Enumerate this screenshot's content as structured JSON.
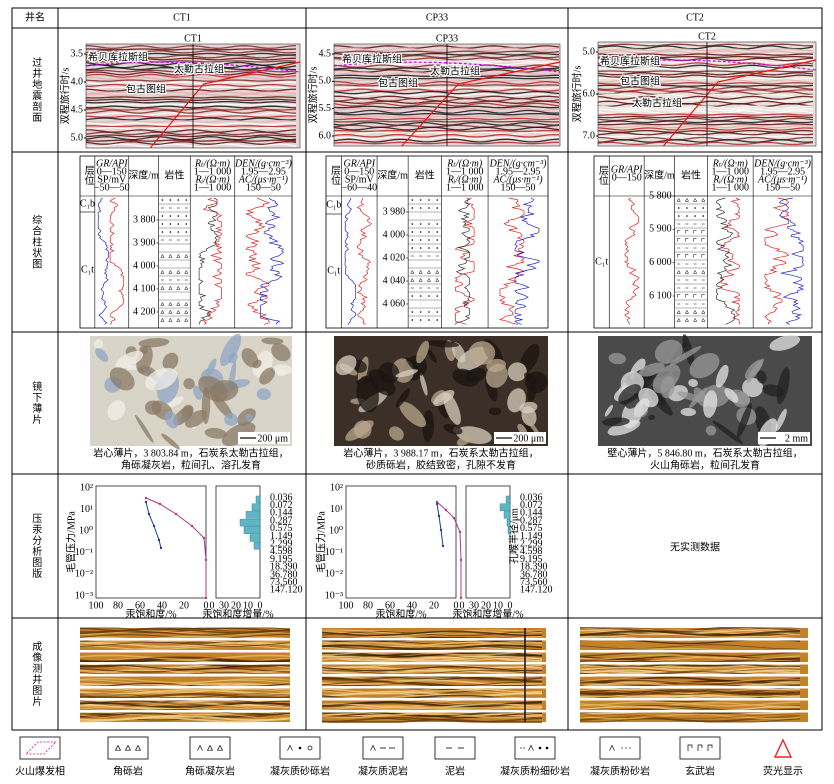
{
  "header": {
    "label": "井名",
    "wells": [
      "CT1",
      "CP33",
      "CT2"
    ]
  },
  "row_labels": [
    "过井地震剖面",
    "综合柱状图",
    "镜下薄片",
    "压汞分析图版",
    "成像测井图片"
  ],
  "seismic": [
    {
      "well": "CT1",
      "axis": "双程旅行时/s",
      "ticks": [
        "3.5",
        "4.0",
        "4.5",
        "5.0"
      ],
      "formations": [
        "希贝库拉斯组",
        "包古图组",
        "太勒古拉组"
      ]
    },
    {
      "well": "CP33",
      "axis": "双程旅行时/s",
      "ticks": [
        "4.5",
        "5.0",
        "5.5",
        "6.0"
      ],
      "formations": [
        "希贝库拉斯组",
        "包古图组",
        "太勒古拉组"
      ]
    },
    {
      "well": "CT2",
      "axis": "双程旅行时/s",
      "ticks": [
        "5.0",
        "6.0",
        "7.0"
      ],
      "formations": [
        "希贝库拉斯组",
        "包古图组",
        "太勒古拉组"
      ]
    }
  ],
  "columns": [
    {
      "strata_label": "层位",
      "gr": "GR/API",
      "gr_range": "0—150",
      "sp": "SP/mV",
      "sp_range": "−50—50",
      "depth": "深度/m",
      "lith": "岩性",
      "rt": "Rₜ/(Ω·m)",
      "rt_range": "1—1 000",
      "ri": "Rᵢ/(Ω·m)",
      "ri_range": "1—1 000",
      "den": "DEN/(g·cm⁻³)",
      "den_range": "1.95—2.95",
      "ac": "AC/(μs·m⁻¹)",
      "ac_range": "150—50",
      "strata": [
        "C₁b",
        "C₁t"
      ],
      "depths": [
        "3 800",
        "3 900",
        "4 000",
        "4 100",
        "4 200"
      ]
    },
    {
      "strata_label": "层位",
      "gr": "GR/API",
      "gr_range": "0—150",
      "sp": "SP/mV",
      "sp_range": "−60—40",
      "depth": "深度/m",
      "lith": "岩性",
      "rt": "Rₜ/(Ω·m)",
      "rt_range": "1—1 000",
      "ri": "Rᵢ/(Ω·m)",
      "ri_range": "1—1 000",
      "den": "DEN/(g·cm⁻³)",
      "den_range": "1.95—2.95",
      "ac": "AC/(μs·m⁻¹)",
      "ac_range": "150—50",
      "strata": [
        "C₁b",
        "C₁t"
      ],
      "depths": [
        "3 980",
        "4 000",
        "4 020",
        "4 040",
        "4 060"
      ]
    },
    {
      "strata_label": "层位",
      "gr": "GR/API",
      "gr_range": "0—150",
      "depth": "深度/m",
      "lith": "岩性",
      "rt": "Rₜ/(Ω·m)",
      "rt_range": "1—1 000",
      "ri": "Rᵢ/(Ω·m)",
      "ri_range": "1—1 000",
      "den": "DEN/(g·cm⁻³)",
      "den_range": "1.95—2.95",
      "ac": "AC/(μs·m⁻¹)",
      "ac_range": "150—50",
      "strata": [
        "C₁t"
      ],
      "depths": [
        "5 800",
        "5 900",
        "6 000",
        "6 100"
      ]
    }
  ],
  "thin_sections": [
    {
      "scale": "200 μm",
      "caption": [
        "岩心薄片，3 803.84 m，石炭系太勒古拉组，",
        "角砾凝灰岩，粒间孔、溶孔发育"
      ]
    },
    {
      "scale": "200 μm",
      "caption": [
        "岩心薄片，3 988.17 m，石炭系太勒古拉组，",
        "砂质砾岩，胶结致密，孔隙不发育"
      ]
    },
    {
      "scale": "2 mm",
      "caption": [
        "壁心薄片，5 846.80 m，石炭系太勒古拉组，",
        "火山角砾岩，粒间孔发育"
      ]
    }
  ],
  "micp": {
    "wells": [
      {
        "y_label": "毛管压力/MPa",
        "y_ticks": [
          "10²",
          "10¹",
          "10⁰",
          "10⁻¹",
          "10⁻²",
          "10⁻³"
        ],
        "x_label": "汞饱和度/%",
        "x_ticks": [
          "100",
          "80",
          "60",
          "40",
          "20",
          "0"
        ],
        "hist_label": "汞饱和度增量/%",
        "hist_ticks": [
          "0",
          "30",
          "20",
          "10",
          "0"
        ],
        "radii": [
          "0.036",
          "0.072",
          "0.144",
          "0.287",
          "0.575",
          "1.149",
          "2.299",
          "4.598",
          "9.195",
          "18.390",
          "36.780",
          "73.560",
          "147.120"
        ]
      },
      {
        "y_label": "毛管压力/MPa",
        "y_ticks": [
          "10²",
          "10¹",
          "10⁰",
          "10⁻¹",
          "10⁻²",
          "10⁻³"
        ],
        "x_label": "汞饱和度/%",
        "x_ticks": [
          "100",
          "80",
          "60",
          "40",
          "20",
          "0"
        ],
        "hist_label": "汞饱和度增量/%",
        "hist_ticks": [
          "0",
          "30",
          "20",
          "10",
          "0"
        ],
        "radius_label": "孔喉半径/μm",
        "radii": [
          "0.036",
          "0.072",
          "0.144",
          "0.287",
          "0.575",
          "1.149",
          "2.299",
          "4.598",
          "9.195",
          "18.390",
          "36.780",
          "73.560",
          "147.120"
        ]
      }
    ],
    "no_data": "无实测数据"
  },
  "legend": [
    "火山爆发相",
    "角砾岩",
    "角砾凝灰岩",
    "凝灰质砂砾岩",
    "凝灰质泥岩",
    "泥岩",
    "凝灰质粉细砂岩",
    "凝灰质粉砂岩",
    "玄武岩",
    "荧光显示"
  ]
}
